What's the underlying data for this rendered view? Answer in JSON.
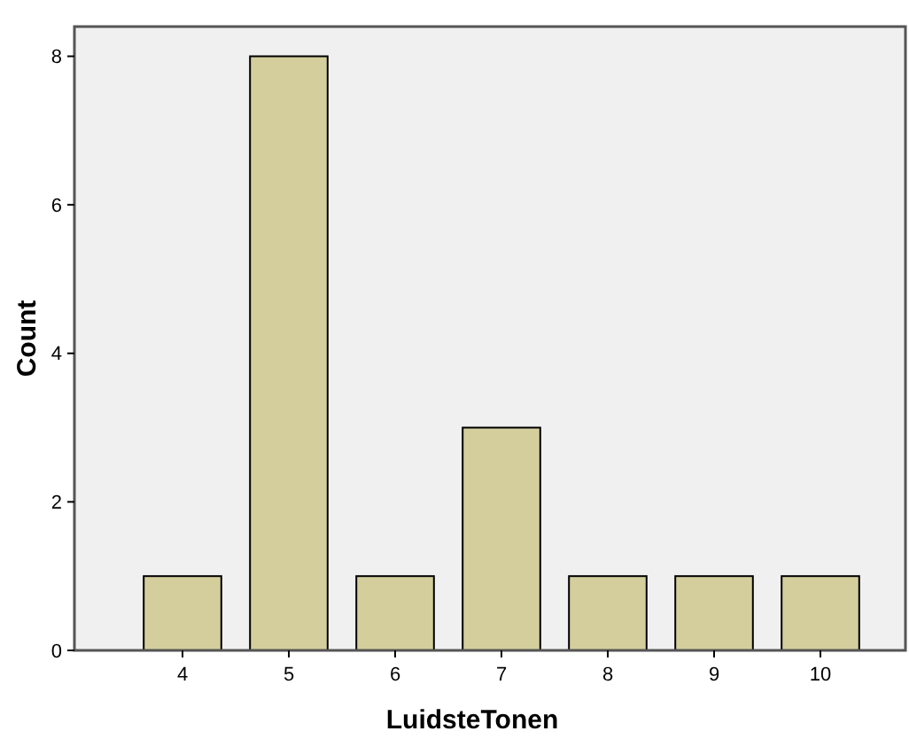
{
  "chart_data": {
    "type": "bar",
    "xlabel": "LuidsteTonen",
    "ylabel": "Count",
    "categories": [
      "4",
      "5",
      "6",
      "7",
      "8",
      "9",
      "10"
    ],
    "values": [
      1,
      8,
      1,
      3,
      1,
      1,
      1
    ],
    "color": "#d3ce9c",
    "ylim": [
      0,
      8.4
    ],
    "yticks": [
      0,
      2,
      4,
      6,
      8
    ],
    "grid": false
  }
}
